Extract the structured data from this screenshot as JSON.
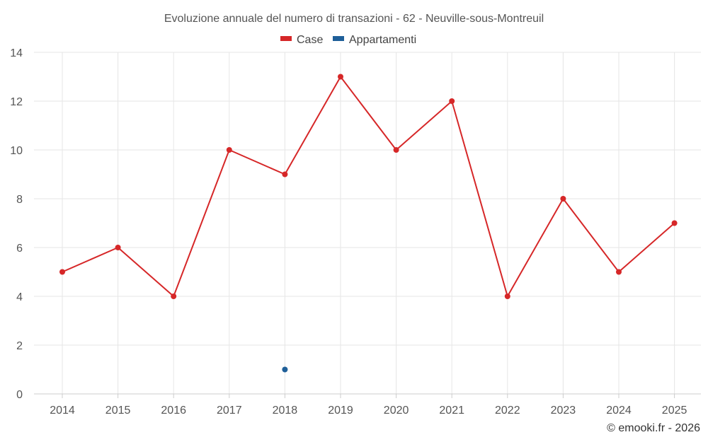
{
  "chart_data": {
    "type": "line",
    "title": "Evoluzione annuale del numero di transazioni - 62 - Neuville-sous-Montreuil",
    "categories": [
      "2014",
      "2015",
      "2016",
      "2017",
      "2018",
      "2019",
      "2020",
      "2021",
      "2022",
      "2023",
      "2024",
      "2025"
    ],
    "series": [
      {
        "name": "Case",
        "color": "#d62728",
        "values": [
          5,
          6,
          4,
          10,
          9,
          13,
          10,
          12,
          4,
          8,
          5,
          7
        ]
      },
      {
        "name": "Appartamenti",
        "color": "#1f5f99",
        "values": [
          null,
          null,
          null,
          null,
          1,
          null,
          null,
          null,
          null,
          null,
          null,
          null
        ]
      }
    ],
    "ylim": [
      0,
      14
    ],
    "yticks": [
      "0",
      "2",
      "4",
      "6",
      "8",
      "10",
      "12",
      "14"
    ],
    "xlabel": "",
    "ylabel": "",
    "legend": "top-center",
    "grid": true
  },
  "credit": "© emooki.fr - 2026"
}
